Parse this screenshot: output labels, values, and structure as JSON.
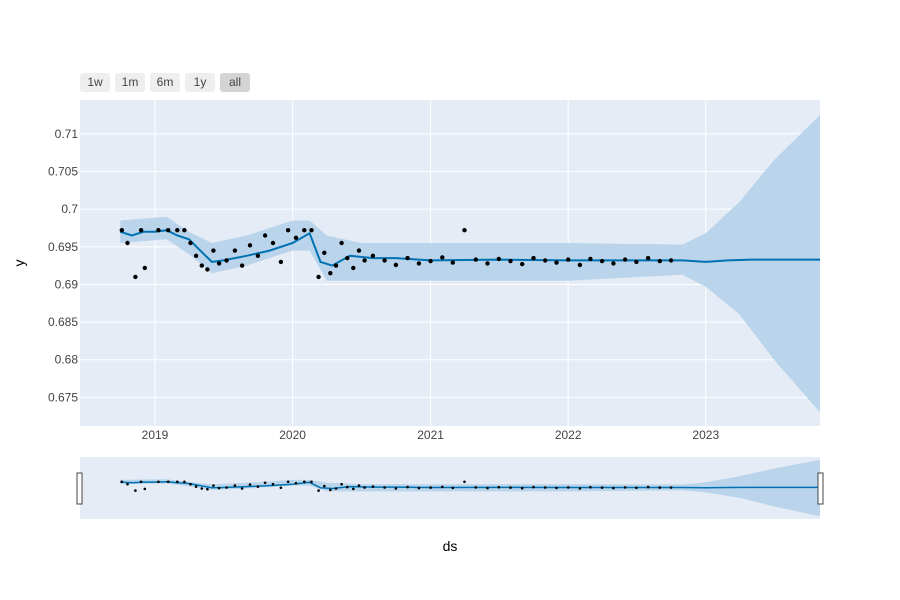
{
  "range_selector": {
    "buttons": [
      "1w",
      "1m",
      "6m",
      "1y",
      "all"
    ],
    "active": "all"
  },
  "colors": {
    "plot_bg": "#e5ecf6",
    "grid": "#ffffff",
    "forecast_line": "#0072b2",
    "uncertainty_band": "#b9d4eb",
    "observed_points": "#000000",
    "tick_text": "#444444"
  },
  "chart_data": {
    "type": "scatter",
    "xlabel": "ds",
    "ylabel": "y",
    "x_range": [
      "2018-06-16",
      "2023-10-31"
    ],
    "y_range": [
      0.6712,
      0.7145
    ],
    "x_ticks": [
      "2019",
      "2020",
      "2021",
      "2022",
      "2023"
    ],
    "y_ticks": [
      "0.675",
      "0.68",
      "0.685",
      "0.69",
      "0.695",
      "0.7",
      "0.705",
      "0.71"
    ],
    "grid": true,
    "legend": "none",
    "rangeslider": true,
    "observed_end": "2022-10-31",
    "series": [
      {
        "kind": "band",
        "x": [
          "2018-10-01",
          "2019-02-01",
          "2019-04-01",
          "2019-06-01",
          "2019-09-01",
          "2020-01-01",
          "2020-02-15",
          "2020-04-01",
          "2020-07-01",
          "2021-01-01",
          "2022-01-01",
          "2022-10-31",
          "2023-01-01",
          "2023-04-01",
          "2023-07-01",
          "2023-10-31"
        ],
        "upper": [
          0.6985,
          0.699,
          0.697,
          0.6955,
          0.6965,
          0.6985,
          0.6985,
          0.6965,
          0.6955,
          0.6955,
          0.6955,
          0.6953,
          0.6968,
          0.701,
          0.7065,
          0.7125
        ],
        "lower": [
          0.6955,
          0.696,
          0.694,
          0.6915,
          0.6925,
          0.6945,
          0.6945,
          0.6905,
          0.6905,
          0.6905,
          0.6905,
          0.6913,
          0.6897,
          0.686,
          0.68,
          0.673
        ]
      },
      {
        "kind": "line",
        "x": [
          "2018-10-01",
          "2018-11-01",
          "2018-12-01",
          "2019-01-01",
          "2019-02-01",
          "2019-03-01",
          "2019-04-01",
          "2019-05-01",
          "2019-06-01",
          "2019-07-01",
          "2019-09-01",
          "2019-11-01",
          "2020-01-01",
          "2020-02-15",
          "2020-03-15",
          "2020-04-15",
          "2020-06-01",
          "2020-08-01",
          "2020-10-01",
          "2021-01-01",
          "2021-07-01",
          "2022-01-01",
          "2022-07-01",
          "2022-10-31",
          "2023-01-01",
          "2023-03-01",
          "2023-05-01",
          "2023-07-01",
          "2023-10-31"
        ],
        "y": [
          0.697,
          0.6965,
          0.697,
          0.697,
          0.6972,
          0.6965,
          0.696,
          0.6945,
          0.693,
          0.6932,
          0.6938,
          0.6945,
          0.6955,
          0.6968,
          0.693,
          0.6925,
          0.6938,
          0.6935,
          0.6935,
          0.6932,
          0.6933,
          0.6932,
          0.6932,
          0.6932,
          0.693,
          0.6932,
          0.6933,
          0.6933,
          0.6933
        ]
      },
      {
        "kind": "points",
        "x": [
          "2018-10-05",
          "2018-10-20",
          "2018-11-10",
          "2018-11-25",
          "2018-12-05",
          "2019-01-10",
          "2019-02-05",
          "2019-03-01",
          "2019-03-20",
          "2019-04-05",
          "2019-04-20",
          "2019-05-05",
          "2019-05-20",
          "2019-06-05",
          "2019-06-20",
          "2019-07-10",
          "2019-08-01",
          "2019-08-20",
          "2019-09-10",
          "2019-10-01",
          "2019-10-20",
          "2019-11-10",
          "2019-12-01",
          "2019-12-20",
          "2020-01-10",
          "2020-02-01",
          "2020-02-20",
          "2020-03-10",
          "2020-03-25",
          "2020-04-10",
          "2020-04-25",
          "2020-05-10",
          "2020-05-25",
          "2020-06-10",
          "2020-06-25",
          "2020-07-10",
          "2020-08-01",
          "2020-09-01",
          "2020-10-01",
          "2020-11-01",
          "2020-12-01",
          "2021-01-01",
          "2021-02-01",
          "2021-03-01",
          "2021-04-01",
          "2021-05-01",
          "2021-06-01",
          "2021-07-01",
          "2021-08-01",
          "2021-09-01",
          "2021-10-01",
          "2021-11-01",
          "2021-12-01",
          "2022-01-01",
          "2022-02-01",
          "2022-03-01",
          "2022-04-01",
          "2022-05-01",
          "2022-06-01",
          "2022-07-01",
          "2022-08-01",
          "2022-09-01",
          "2022-10-01"
        ],
        "y": [
          0.6972,
          0.6955,
          0.691,
          0.6972,
          0.6922,
          0.6972,
          0.6972,
          0.6972,
          0.6972,
          0.6955,
          0.6938,
          0.6925,
          0.692,
          0.6945,
          0.6928,
          0.6932,
          0.6945,
          0.6925,
          0.6952,
          0.6938,
          0.6965,
          0.6955,
          0.693,
          0.6972,
          0.6962,
          0.6972,
          0.6972,
          0.691,
          0.6942,
          0.6915,
          0.6925,
          0.6955,
          0.6935,
          0.6922,
          0.6945,
          0.6932,
          0.6938,
          0.6932,
          0.6926,
          0.6935,
          0.6928,
          0.6931,
          0.6936,
          0.6929,
          0.6972,
          0.6933,
          0.6928,
          0.6934,
          0.6931,
          0.6927,
          0.6935,
          0.6932,
          0.6929,
          0.6933,
          0.6926,
          0.6934,
          0.6931,
          0.6928,
          0.6933,
          0.693,
          0.6935,
          0.6931,
          0.6932
        ]
      }
    ]
  }
}
